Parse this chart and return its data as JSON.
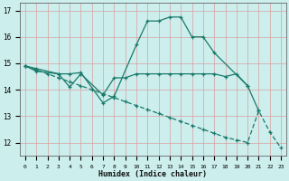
{
  "line1_x": [
    0,
    1,
    3,
    4,
    5,
    7,
    8,
    10,
    11,
    12,
    13,
    14,
    15,
    16,
    17,
    20,
    21
  ],
  "line1_y": [
    14.9,
    14.8,
    14.6,
    14.6,
    14.65,
    13.5,
    13.75,
    15.7,
    16.6,
    16.6,
    16.75,
    16.75,
    16.0,
    16.0,
    15.4,
    14.15,
    13.2
  ],
  "line2_x": [
    0,
    1,
    3,
    4,
    5,
    7,
    8,
    9,
    10,
    11,
    12,
    13,
    14,
    15,
    16,
    17,
    18,
    19,
    20
  ],
  "line2_y": [
    14.9,
    14.7,
    14.6,
    14.1,
    14.6,
    13.8,
    14.45,
    14.45,
    14.6,
    14.6,
    14.6,
    14.6,
    14.6,
    14.6,
    14.6,
    14.6,
    14.5,
    14.6,
    14.15
  ],
  "line3_x": [
    0,
    1,
    2,
    3,
    4,
    5,
    6,
    7,
    8,
    9,
    10,
    11,
    12,
    13,
    14,
    15,
    16,
    17,
    18,
    19,
    20,
    21,
    22,
    23
  ],
  "line3_y": [
    14.9,
    14.75,
    14.6,
    14.45,
    14.3,
    14.15,
    14.0,
    13.85,
    13.7,
    13.55,
    13.4,
    13.25,
    13.1,
    12.95,
    12.8,
    12.65,
    12.5,
    12.35,
    12.2,
    12.1,
    12.0,
    13.2,
    12.4,
    11.8
  ],
  "line_color": "#1a7a6a",
  "bg_color": "#cceeed",
  "grid_color_major": "#d9a0a0",
  "grid_color_minor": "#d9a0a0",
  "xlabel": "Humidex (Indice chaleur)",
  "ylim": [
    11.5,
    17.3
  ],
  "xlim": [
    -0.5,
    23.5
  ],
  "yticks": [
    12,
    13,
    14,
    15,
    16,
    17
  ],
  "xticks": [
    0,
    1,
    2,
    3,
    4,
    5,
    6,
    7,
    8,
    9,
    10,
    11,
    12,
    13,
    14,
    15,
    16,
    17,
    18,
    19,
    20,
    21,
    22,
    23
  ]
}
